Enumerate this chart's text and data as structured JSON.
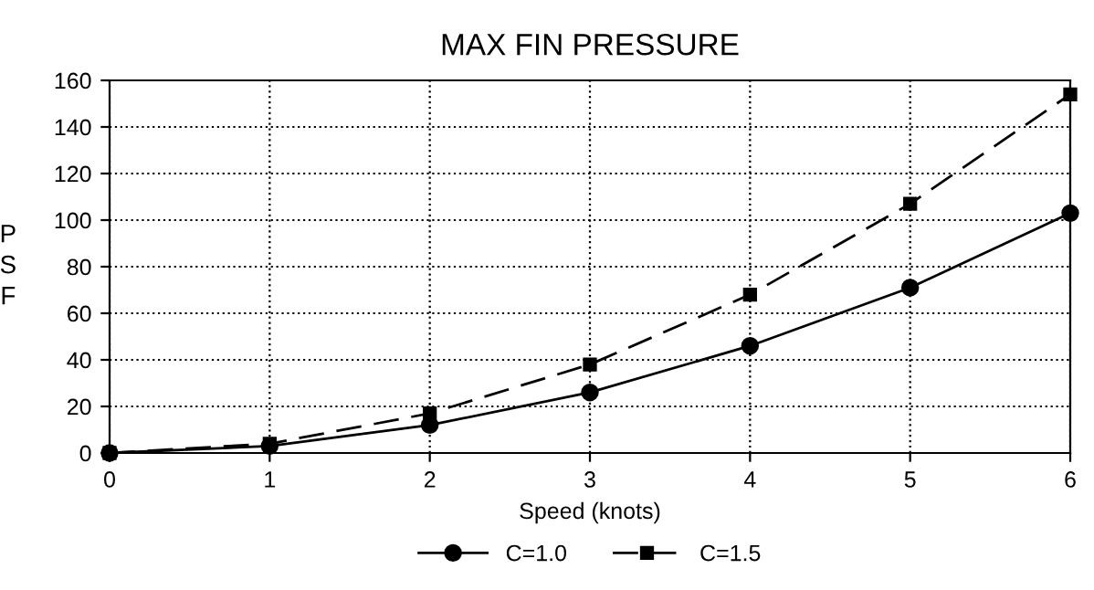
{
  "chart_data": {
    "type": "line",
    "title": "MAX FIN PRESSURE",
    "xlabel": "Speed (knots)",
    "ylabel": "P\nS\nF",
    "x": [
      0,
      1,
      2,
      3,
      4,
      5,
      6
    ],
    "series": [
      {
        "name": "C=1.0",
        "color": "#000000",
        "marker": "circle",
        "line_style": "solid",
        "values": [
          0,
          3,
          12,
          26,
          46,
          71,
          103
        ]
      },
      {
        "name": "C=1.5",
        "color": "#000000",
        "marker": "square",
        "line_style": "dashed",
        "values": [
          0,
          4,
          17,
          38,
          68,
          107,
          154
        ]
      }
    ],
    "xlim": [
      0,
      6
    ],
    "xticks": [
      0,
      1,
      2,
      3,
      4,
      5,
      6
    ],
    "ylim": [
      0,
      160
    ],
    "yticks": [
      0,
      20,
      40,
      60,
      80,
      100,
      120,
      140,
      160
    ],
    "grid": true,
    "legend": "bottom"
  }
}
